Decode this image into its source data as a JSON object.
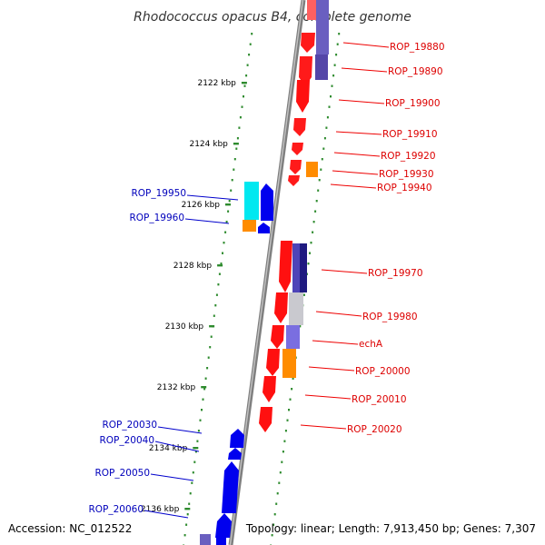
{
  "title": "Rhodococcus opacus B4, complete genome",
  "accession": "Accession: NC_012522",
  "topology": "Topology: linear; Length: 7,913,450 bp; Genes: 7,307",
  "ticks": [
    {
      "label": "2122 kbp",
      "kbp": 2122
    },
    {
      "label": "2124 kbp",
      "kbp": 2124
    },
    {
      "label": "2126 kbp",
      "kbp": 2126
    },
    {
      "label": "2128 kbp",
      "kbp": 2128
    },
    {
      "label": "2130 kbp",
      "kbp": 2130
    },
    {
      "label": "2132 kbp",
      "kbp": 2132
    },
    {
      "label": "2134 kbp",
      "kbp": 2134
    },
    {
      "label": "2136 kbp",
      "kbp": 2136
    }
  ],
  "colors": {
    "forward_gene": "#ff0000",
    "reverse_gene": "#0000ee",
    "rna_gene": "#00e5ee",
    "purple_feature": "#5a4fb0",
    "grey_feature": "#c8c8d0",
    "orange_feature": "#ff8c00",
    "forward_label": "#dd0000",
    "reverse_label": "#0000bb",
    "tick_dots": "#2e8b2e",
    "backbone": "#808080"
  },
  "labels_right": [
    "ROP_19880",
    "ROP_19890",
    "ROP_19900",
    "ROP_19910",
    "ROP_19920",
    "ROP_19930",
    "ROP_19940",
    "ROP_19970",
    "ROP_19980",
    "echA",
    "ROP_20000",
    "ROP_20010",
    "ROP_20020"
  ],
  "labels_left": [
    "ROP_19950",
    "ROP_19960",
    "ROP_20030",
    "ROP_20040",
    "ROP_20050",
    "ROP_20060"
  ]
}
